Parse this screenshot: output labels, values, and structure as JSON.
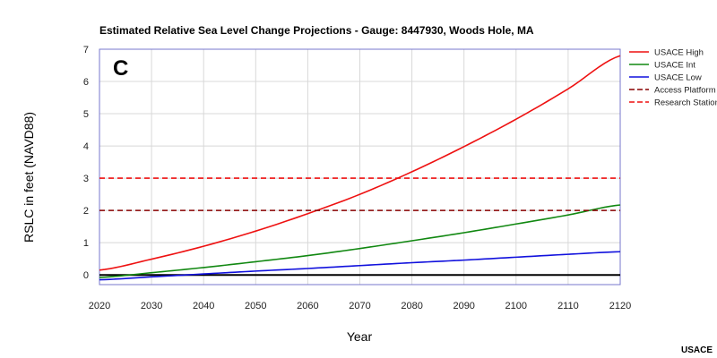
{
  "chart_data": {
    "type": "line",
    "title": "Estimated Relative Sea Level Change Projections - Gauge: 8447930, Woods Hole, MA",
    "panel_label": "C",
    "xlabel": "Year",
    "ylabel": "RSLC in feet (NAVD88)",
    "xlim": [
      2020,
      2120
    ],
    "ylim": [
      -0.3,
      7
    ],
    "xticks": [
      2020,
      2030,
      2040,
      2050,
      2060,
      2070,
      2080,
      2090,
      2100,
      2110,
      2120
    ],
    "yticks": [
      0,
      1,
      2,
      3,
      4,
      5,
      6,
      7
    ],
    "grid": true,
    "legend_position": "right",
    "credit": "USACE",
    "series": [
      {
        "name": "USACE High",
        "color": "#ee1111",
        "style": "solid",
        "x": [
          2020,
          2030,
          2040,
          2050,
          2060,
          2070,
          2080,
          2090,
          2100,
          2110,
          2120
        ],
        "y": [
          0.15,
          0.49,
          0.89,
          1.36,
          1.9,
          2.5,
          3.2,
          3.98,
          4.83,
          5.77,
          6.8
        ]
      },
      {
        "name": "USACE Int",
        "color": "#118811",
        "style": "solid",
        "x": [
          2020,
          2030,
          2040,
          2050,
          2060,
          2070,
          2080,
          2090,
          2100,
          2110,
          2120
        ],
        "y": [
          -0.08,
          0.07,
          0.23,
          0.41,
          0.6,
          0.82,
          1.06,
          1.31,
          1.58,
          1.86,
          2.17
        ]
      },
      {
        "name": "USACE Low",
        "color": "#1111dd",
        "style": "solid",
        "x": [
          2020,
          2030,
          2040,
          2050,
          2060,
          2070,
          2080,
          2090,
          2100,
          2110,
          2120
        ],
        "y": [
          -0.15,
          -0.06,
          0.03,
          0.12,
          0.2,
          0.29,
          0.38,
          0.46,
          0.55,
          0.64,
          0.72
        ]
      },
      {
        "name": "Access Platform",
        "color": "#880000",
        "style": "dashed",
        "x": [
          2020,
          2120
        ],
        "y": [
          2,
          2
        ]
      },
      {
        "name": "Research Station",
        "color": "#ee1111",
        "style": "dashed",
        "x": [
          2020,
          2120
        ],
        "y": [
          3,
          3
        ]
      }
    ],
    "reference_line": {
      "y": 0,
      "color": "#000000"
    },
    "plot_border_color": "#7777cc",
    "grid_color": "#d8d8d8"
  }
}
